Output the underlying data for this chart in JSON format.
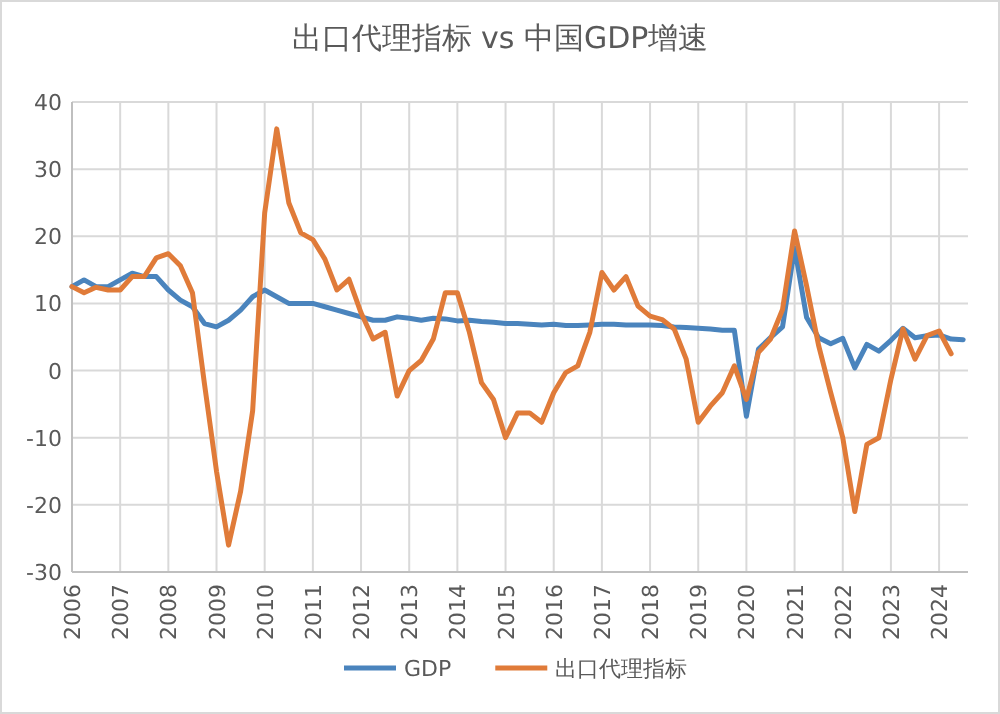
{
  "chart_data": {
    "type": "line",
    "title": "出口代理指标 vs 中国GDP增速",
    "x": [
      2006,
      2006.25,
      2006.5,
      2006.75,
      2007,
      2007.25,
      2007.5,
      2007.75,
      2008,
      2008.25,
      2008.5,
      2008.75,
      2009,
      2009.25,
      2009.5,
      2009.75,
      2010,
      2010.25,
      2010.5,
      2010.75,
      2011,
      2011.25,
      2011.5,
      2011.75,
      2012,
      2012.25,
      2012.5,
      2012.75,
      2013,
      2013.25,
      2013.5,
      2013.75,
      2014,
      2014.25,
      2014.5,
      2014.75,
      2015,
      2015.25,
      2015.5,
      2015.75,
      2016,
      2016.25,
      2016.5,
      2016.75,
      2017,
      2017.25,
      2017.5,
      2017.75,
      2018,
      2018.25,
      2018.5,
      2018.75,
      2019,
      2019.25,
      2019.5,
      2019.75,
      2020,
      2020.25,
      2020.5,
      2020.75,
      2021,
      2021.25,
      2021.5,
      2021.75,
      2022,
      2022.25,
      2022.5,
      2022.75,
      2023,
      2023.25,
      2023.5,
      2023.75,
      2024,
      2024.25,
      2024.5
    ],
    "series": [
      {
        "name": "GDP",
        "color": "#4a84bd",
        "values": [
          12.5,
          13.5,
          12.5,
          12.5,
          13.5,
          14.5,
          14.0,
          14.0,
          12.0,
          10.5,
          9.5,
          7.0,
          6.5,
          7.5,
          9.0,
          11.0,
          12.0,
          11.0,
          10.0,
          10.0,
          10.0,
          9.5,
          9.0,
          8.5,
          8.0,
          7.5,
          7.5,
          8.0,
          7.8,
          7.5,
          7.8,
          7.7,
          7.4,
          7.5,
          7.3,
          7.2,
          7.0,
          7.0,
          6.9,
          6.8,
          6.9,
          6.7,
          6.7,
          6.8,
          6.9,
          6.9,
          6.8,
          6.8,
          6.8,
          6.7,
          6.5,
          6.4,
          6.3,
          6.2,
          6.0,
          6.0,
          -6.8,
          3.2,
          4.9,
          6.5,
          18.3,
          7.9,
          4.9,
          4.0,
          4.8,
          0.4,
          3.9,
          2.9,
          4.5,
          6.3,
          4.9,
          5.2,
          5.3,
          4.7,
          4.6
        ]
      },
      {
        "name": "出口代理指标",
        "color": "#e07b39",
        "values": [
          12.5,
          11.6,
          12.4,
          12,
          12,
          14,
          14,
          16.8,
          17.4,
          15.6,
          11.6,
          -2,
          -15,
          -26,
          -18,
          -6,
          23.5,
          36,
          25,
          20.5,
          19.5,
          16.6,
          12,
          13.6,
          8.6,
          4.7,
          5.7,
          -3.8,
          0,
          1.5,
          4.7,
          11.6,
          11.6,
          5.7,
          -1.8,
          -4.3,
          -10,
          -6.3,
          -6.3,
          -7.7,
          -3.3,
          -0.3,
          0.7,
          5.7,
          14.6,
          12,
          14,
          9.6,
          8.1,
          7.6,
          6.2,
          1.7,
          -7.7,
          -5.3,
          -3.3,
          0.7,
          -4.3,
          2.7,
          4.7,
          9.1,
          20.8,
          12.6,
          3.7,
          -3.3,
          -10,
          -21,
          -11,
          -10,
          -1.3,
          6.2,
          1.7,
          5.2,
          5.9,
          2.5,
          null
        ]
      }
    ],
    "xlim": [
      2006,
      2024.6
    ],
    "xticks": [
      2006,
      2007,
      2008,
      2009,
      2010,
      2011,
      2012,
      2013,
      2014,
      2015,
      2016,
      2017,
      2018,
      2019,
      2020,
      2021,
      2022,
      2023,
      2024
    ],
    "ylim": [
      -30,
      40
    ],
    "yticks": [
      -30,
      -20,
      -10,
      0,
      10,
      20,
      30,
      40
    ],
    "grid": true,
    "legend": "bottom",
    "marker": "none",
    "line_style": "solid"
  }
}
